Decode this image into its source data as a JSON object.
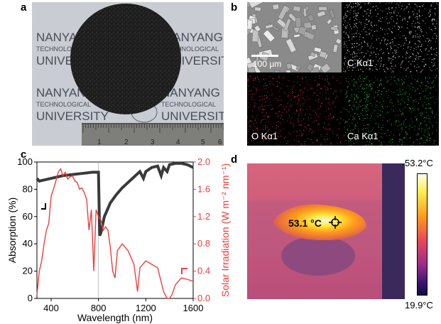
{
  "panels": {
    "a": {
      "letter": "a",
      "watermark_lines": [
        "NANYANG",
        "TECHNOLOGICAL",
        "UNIVERSITY"
      ],
      "ruler_numbers": [
        "1",
        "2",
        "3",
        "4",
        "5",
        "6"
      ]
    },
    "b": {
      "letter": "b",
      "scale_bar": "100 μm",
      "maps": [
        "C Kα1",
        "O Kα1",
        "Ca Kα1"
      ]
    },
    "c": {
      "letter": "c"
    },
    "d": {
      "letter": "d",
      "spot_temp": "53.1 °C",
      "scale_max": "53.2°C",
      "scale_min": "19.9°C"
    }
  },
  "chart_data": {
    "type": "line",
    "xlabel": "Wavelength (nm)",
    "ylabel": "Absorption (%)",
    "y2label": "Solar Irradiation (W m⁻² nm⁻¹)",
    "xlim": [
      280,
      1600
    ],
    "ylim": [
      0,
      100
    ],
    "y2lim": [
      0,
      2.0
    ],
    "x_ticks": [
      "400",
      "800",
      "1200",
      "1600"
    ],
    "y_ticks": [
      "0",
      "20",
      "40",
      "60",
      "80",
      "100"
    ],
    "y2_ticks": [
      "0.0",
      "0.4",
      "0.8",
      "1.2",
      "1.6",
      "2.0"
    ],
    "series": [
      {
        "axis": "left",
        "color": "#3a3a3a",
        "x": [
          280,
          300,
          350,
          400,
          450,
          500,
          550,
          600,
          650,
          700,
          750,
          800,
          810,
          820,
          850,
          900,
          950,
          1000,
          1050,
          1100,
          1150,
          1180,
          1200,
          1250,
          1300,
          1330,
          1350,
          1380,
          1400,
          1450,
          1500,
          1550,
          1600
        ],
        "y": [
          88,
          86,
          87,
          88,
          89,
          90,
          90.5,
          91,
          91.5,
          92,
          92.5,
          92.5,
          46,
          48,
          60,
          70,
          76,
          81,
          85,
          89,
          93,
          88,
          93,
          96,
          97,
          90,
          96,
          93,
          98,
          99,
          99,
          98,
          96
        ]
      },
      {
        "axis": "right",
        "color": "#e84040",
        "x": [
          280,
          300,
          320,
          340,
          360,
          380,
          400,
          420,
          440,
          460,
          480,
          500,
          520,
          540,
          560,
          580,
          600,
          620,
          640,
          660,
          680,
          700,
          720,
          740,
          760,
          780,
          800,
          820,
          840,
          860,
          880,
          900,
          920,
          940,
          960,
          980,
          1000,
          1050,
          1100,
          1130,
          1150,
          1200,
          1250,
          1300,
          1350,
          1380,
          1400,
          1420,
          1450,
          1500,
          1550,
          1600
        ],
        "y": [
          0.05,
          0.4,
          0.55,
          0.8,
          1.0,
          1.1,
          1.5,
          1.6,
          1.72,
          1.85,
          1.9,
          1.8,
          1.85,
          1.75,
          1.78,
          1.8,
          1.72,
          1.7,
          1.6,
          1.62,
          1.55,
          1.45,
          1.0,
          1.3,
          0.4,
          1.3,
          1.2,
          1.15,
          1.0,
          1.05,
          1.0,
          0.75,
          0.4,
          0.3,
          0.7,
          0.75,
          0.8,
          0.7,
          0.5,
          0.1,
          0.45,
          0.55,
          0.5,
          0.45,
          0.1,
          0.0,
          0.0,
          0.05,
          0.2,
          0.3,
          0.28,
          0.25
        ]
      }
    ]
  }
}
